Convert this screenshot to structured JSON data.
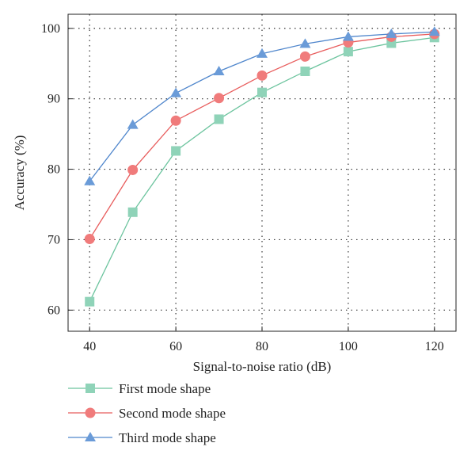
{
  "chart_data": {
    "type": "line",
    "xlabel": "Signal-to-noise ratio (dB)",
    "ylabel": "Accuracy (%)",
    "xlim": [
      35,
      125
    ],
    "ylim": [
      57,
      102
    ],
    "xticks": [
      40,
      60,
      80,
      100,
      120
    ],
    "yticks": [
      60,
      70,
      80,
      90,
      100
    ],
    "grid": true,
    "legend_position": "bottom",
    "x": [
      40,
      50,
      60,
      70,
      80,
      90,
      100,
      110,
      120
    ],
    "series": [
      {
        "name": "First mode shape",
        "marker": "square",
        "color": "#8fd3b8",
        "line_color": "#6cc49e",
        "values": [
          61.2,
          73.9,
          82.6,
          87.1,
          90.9,
          93.9,
          96.7,
          97.9,
          98.7
        ]
      },
      {
        "name": "Second mode shape",
        "marker": "circle",
        "color": "#f07b7b",
        "line_color": "#e85c5c",
        "values": [
          70.1,
          79.9,
          86.9,
          90.1,
          93.3,
          96.0,
          98.0,
          98.8,
          99.2
        ]
      },
      {
        "name": "Third mode shape",
        "marker": "triangle",
        "color": "#6a9bd8",
        "line_color": "#4f86cc",
        "values": [
          78.3,
          86.3,
          90.8,
          93.9,
          96.4,
          97.8,
          98.8,
          99.2,
          99.5
        ]
      }
    ]
  }
}
